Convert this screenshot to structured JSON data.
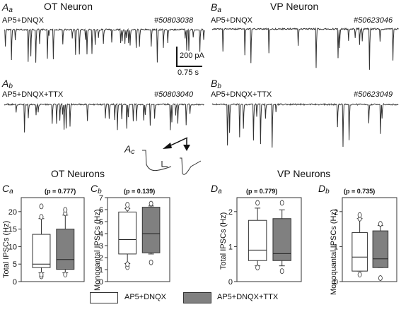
{
  "colors": {
    "open_box": "#ffffff",
    "filled_box": "#808080",
    "trace": "#333333"
  },
  "panel_a": {
    "title": "OT Neuron",
    "aa": {
      "letter": "A",
      "sub": "a",
      "condition": "AP5+DNQX",
      "record": "#50803038"
    },
    "ab": {
      "letter": "A",
      "sub": "b",
      "condition": "AP5+DNQX+TTX",
      "record": "#50803040"
    },
    "ac": {
      "letter": "A",
      "sub": "c"
    }
  },
  "panel_b": {
    "title": "VP Neuron",
    "ba": {
      "letter": "B",
      "sub": "a",
      "condition": "AP5+DNQX",
      "record": "#50623046"
    },
    "bb": {
      "letter": "B",
      "sub": "b",
      "condition": "AP5+DNQX+TTX",
      "record": "#50623049"
    }
  },
  "scale_bar": {
    "current": "200 pA",
    "time": "0.75 s"
  },
  "headings": {
    "ot": "OT Neurons",
    "vp": "VP Neurons"
  },
  "legend": {
    "open": "AP5+DNQX",
    "filled": "AP5+DNQX+TTX"
  },
  "chart_data": [
    {
      "type": "box",
      "panel": "Ca",
      "ylabel": "Total IPSCs (Hz)",
      "p_value": "(p = 0.777)",
      "ylim": [
        0,
        24
      ],
      "yticks": [
        "0",
        "5",
        "10",
        "15",
        "20"
      ],
      "series": [
        {
          "name": "AP5+DNQX",
          "whisker_low": 2.5,
          "q1": 4,
          "median": 5,
          "q3": 13.5,
          "whisker_high": 18,
          "outliers": [
            1.5,
            2,
            18.5,
            21.5
          ]
        },
        {
          "name": "AP5+DNQX+TTX",
          "whisker_low": 2.5,
          "q1": 3.5,
          "median": 6.3,
          "q3": 15,
          "whisker_high": 19,
          "outliers": [
            2,
            19.5,
            20.5
          ]
        }
      ]
    },
    {
      "type": "box",
      "panel": "Cb",
      "ylabel": "Monoqantal IPSCs (Hz)",
      "p_value": "(p = 0.139)",
      "ylim": [
        0,
        7
      ],
      "yticks": [
        "0",
        "1",
        "2",
        "3",
        "4",
        "5",
        "6",
        "7"
      ],
      "series": [
        {
          "name": "AP5+DNQX",
          "whisker_low": 1.5,
          "q1": 2.3,
          "median": 3.5,
          "q3": 5.8,
          "whisker_high": 6.1,
          "outliers": [
            1.2,
            1.45,
            6.1,
            6.4
          ]
        },
        {
          "name": "AP5+DNQX+TTX",
          "whisker_low": 2.3,
          "q1": 2.4,
          "median": 4,
          "q3": 6.2,
          "whisker_high": 6.3,
          "outliers": [
            1.6,
            6.5
          ]
        }
      ]
    },
    {
      "type": "box",
      "panel": "Da",
      "ylabel": "Total IPSCs (Hz)",
      "p_value": "(p = 0.779)",
      "ylim": [
        0,
        2.4
      ],
      "yticks": [
        "0",
        "1",
        "2"
      ],
      "series": [
        {
          "name": "AP5+DNQX",
          "whisker_low": 0.45,
          "q1": 0.6,
          "median": 0.9,
          "q3": 1.75,
          "whisker_high": 2.1,
          "outliers": [
            0.4,
            2.25
          ]
        },
        {
          "name": "AP5+DNQX+TTX",
          "whisker_low": 0.45,
          "q1": 0.6,
          "median": 0.8,
          "q3": 1.8,
          "whisker_high": 2.05,
          "outliers": [
            0.3,
            2.25
          ]
        }
      ]
    },
    {
      "type": "box",
      "panel": "Db",
      "ylabel": "Monoquantal IPSCs (Hz)",
      "p_value": "(p = 0.735)",
      "ylim": [
        0,
        2.4
      ],
      "yticks": [
        "0",
        "1",
        "2"
      ],
      "series": [
        {
          "name": "AP5+DNQX",
          "whisker_low": 0.3,
          "q1": 0.3,
          "median": 0.7,
          "q3": 1.4,
          "whisker_high": 1.8,
          "outliers": [
            0.2,
            1.8,
            1.9
          ]
        },
        {
          "name": "AP5+DNQX+TTX",
          "whisker_low": 0.4,
          "q1": 0.4,
          "median": 0.65,
          "q3": 1.45,
          "whisker_high": 1.6,
          "outliers": [
            0.1,
            1.65
          ]
        }
      ]
    }
  ]
}
